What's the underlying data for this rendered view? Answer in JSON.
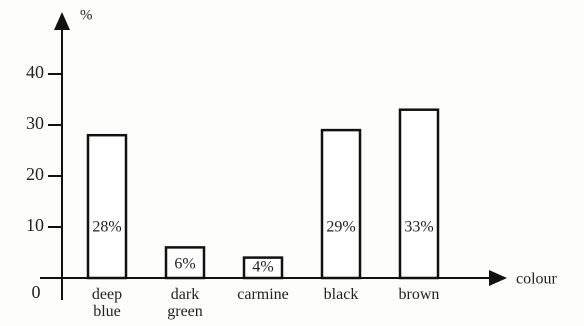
{
  "chart_data": {
    "type": "bar",
    "y_label": "%",
    "x_label": "colour",
    "categories": [
      "deep blue",
      "dark green",
      "carmine",
      "black",
      "brown"
    ],
    "values": [
      28,
      6,
      4,
      29,
      33
    ],
    "value_labels": [
      "28%",
      "6%",
      "4%",
      "29%",
      "33%"
    ],
    "color": "#ffffff",
    "ylim": [
      0,
      50
    ],
    "yticks": [
      0,
      10,
      20,
      30,
      40
    ]
  }
}
